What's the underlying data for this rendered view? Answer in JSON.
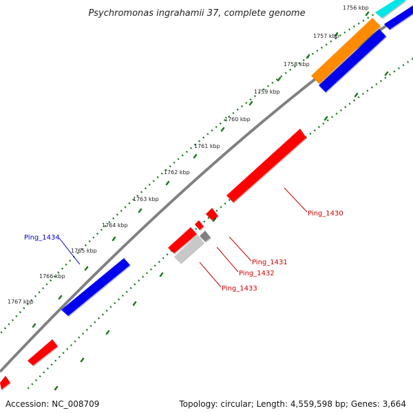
{
  "title": "Psychromonas ingrahamii 37, complete genome",
  "accession_text": "Accession: NC_008709",
  "topology_text": "Topology: circular; Length: 4,559,598 bp; Genes: 3,664",
  "ticks": [
    "1756 kbp",
    "1757 kbp",
    "1758 kbp",
    "1759 kbp",
    "1760 kbp",
    "1761 kbp",
    "1762 kbp",
    "1763 kbp",
    "1764 kbp",
    "1765 kbp",
    "1766 kbp",
    "1767 kbp"
  ],
  "genes": {
    "ping_1430": "Ping_1430",
    "ping_1431": "Ping_1431",
    "ping_1432": "Ping_1432",
    "ping_1433": "Ping_1433",
    "ping_1434": "Ping_1434"
  },
  "colors": {
    "backbone": "#808080",
    "gc_dots": "#1a7a1a",
    "red": "#ff0000",
    "blue": "#0000ee",
    "orange": "#ff8c00",
    "cyan": "#00e5e5",
    "gray": "#808080",
    "lightgray": "#c8c8c8",
    "red_label": "#cc0000",
    "blue_label": "#0000cc"
  }
}
